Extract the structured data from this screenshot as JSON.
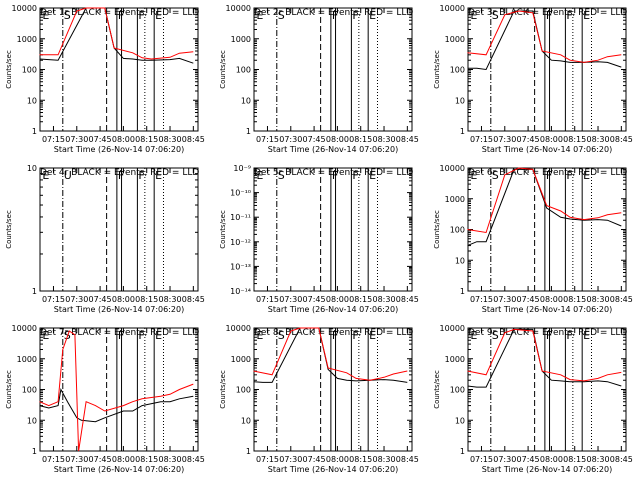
{
  "figure": {
    "time_ticks": [
      "07:15",
      "07:30",
      "07:45",
      "08:00",
      "08:15",
      "08:30",
      "08:45"
    ],
    "colors": {
      "events": "#000000",
      "lld": "#ff0000",
      "axes": "#000000"
    }
  },
  "chart_data": [
    {
      "type": "line",
      "title": "Det 1r BLACK = Events, RED = LLD",
      "xlabel": "Start Time (26-Nov-14 07:06:20)",
      "ylabel": "Counts/sec",
      "yscale": "log",
      "ylim": [
        1,
        10000
      ],
      "yticks": [
        "1",
        "10",
        "100",
        "1000",
        "10000"
      ],
      "markers": [
        "E",
        "S",
        "F",
        "F",
        "E"
      ],
      "series": [
        {
          "color": "#000000",
          "x": [
            7.1,
            7.2,
            7.3,
            7.6,
            7.8,
            7.9,
            8.0,
            8.1,
            8.2,
            8.3,
            8.5,
            8.6,
            8.75
          ],
          "y": [
            220,
            210,
            200,
            10000,
            10000,
            500,
            230,
            220,
            200,
            200,
            210,
            230,
            160
          ]
        },
        {
          "color": "#ff0000",
          "x": [
            7.1,
            7.3,
            7.5,
            7.6,
            7.8,
            7.9,
            8.1,
            8.2,
            8.3,
            8.5,
            8.6,
            8.75
          ],
          "y": [
            300,
            300,
            8000,
            10000,
            10000,
            500,
            350,
            240,
            220,
            250,
            340,
            380
          ]
        }
      ]
    },
    {
      "type": "line",
      "title": "Det 2r BLACK = Events, RED = LLD",
      "xlabel": "Start Time (26-Nov-14 07:06:20)",
      "ylabel": "Counts/sec",
      "yscale": "log",
      "ylim": [
        1,
        10000
      ],
      "yticks": [
        "1",
        "10",
        "100",
        "1000",
        "10000"
      ],
      "markers": [
        "E",
        "S",
        "F",
        "F",
        "E"
      ],
      "series": []
    },
    {
      "type": "line",
      "title": "Det 3r BLACK = Events, RED = LLD",
      "xlabel": "Start Time (26-Nov-14 07:06:20)",
      "ylabel": "Counts/sec",
      "yscale": "log",
      "ylim": [
        1,
        10000
      ],
      "yticks": [
        "1",
        "10",
        "100",
        "1000",
        "10000"
      ],
      "markers": [
        "E",
        "S",
        "F",
        "F",
        "E"
      ],
      "series": [
        {
          "color": "#000000",
          "x": [
            7.1,
            7.2,
            7.3,
            7.6,
            7.8,
            7.9,
            8.0,
            8.1,
            8.2,
            8.35,
            8.5,
            8.6,
            8.75
          ],
          "y": [
            110,
            110,
            100,
            8000,
            8000,
            400,
            200,
            190,
            170,
            170,
            180,
            170,
            120
          ]
        },
        {
          "color": "#ff0000",
          "x": [
            7.1,
            7.3,
            7.5,
            7.65,
            7.8,
            7.9,
            8.1,
            8.2,
            8.35,
            8.5,
            8.6,
            8.75
          ],
          "y": [
            350,
            300,
            6000,
            8000,
            7000,
            400,
            300,
            200,
            170,
            200,
            260,
            300
          ]
        }
      ]
    },
    {
      "type": "line",
      "title": "Det 4r BLACK = Events, RED = LLD",
      "xlabel": "Start Time (26-Nov-14 07:06:20)",
      "ylabel": "Counts/sec",
      "yscale": "log",
      "ylim": [
        1,
        10
      ],
      "yticks": [
        "1",
        "10"
      ],
      "markers": [
        "E",
        "U",
        "F",
        "F",
        "E"
      ],
      "series": []
    },
    {
      "type": "line",
      "title": "Det 5r BLACK = Events, RED = LLD",
      "xlabel": "Start Time (26-Nov-14 07:06:20)",
      "ylabel": "Counts/sec",
      "yscale": "log",
      "ylim": [
        1e-14,
        1e-09
      ],
      "yticks": [
        "10⁻¹⁴",
        "10⁻¹³",
        "10⁻¹²",
        "10⁻¹¹",
        "10⁻¹⁰",
        "10⁻⁹"
      ],
      "markers": [
        "E",
        "S",
        "F",
        "F",
        "E"
      ],
      "series": []
    },
    {
      "type": "line",
      "title": "Det 6r BLACK = Events, RED = LLD",
      "xlabel": "Start Time (26-Nov-14 07:06:20)",
      "ylabel": "Counts/sec",
      "yscale": "log",
      "ylim": [
        1,
        10000
      ],
      "yticks": [
        "1",
        "10",
        "100",
        "1000",
        "10000"
      ],
      "markers": [
        "E",
        "S",
        "F",
        "F",
        "E"
      ],
      "series": [
        {
          "color": "#000000",
          "x": [
            7.1,
            7.2,
            7.3,
            7.6,
            7.8,
            7.95,
            8.1,
            8.2,
            8.35,
            8.5,
            8.6,
            8.75
          ],
          "y": [
            30,
            40,
            40,
            9000,
            9000,
            500,
            250,
            220,
            200,
            210,
            200,
            130
          ]
        },
        {
          "color": "#ff0000",
          "x": [
            7.1,
            7.3,
            7.5,
            7.65,
            7.8,
            7.95,
            8.1,
            8.2,
            8.35,
            8.5,
            8.6,
            8.75
          ],
          "y": [
            100,
            80,
            6000,
            10000,
            9000,
            600,
            400,
            250,
            210,
            240,
            300,
            350
          ]
        }
      ]
    },
    {
      "type": "line",
      "title": "Det 7r BLACK = Events, RED = LLD",
      "xlabel": "Start Time (26-Nov-14 07:06:20)",
      "ylabel": "Counts/sec",
      "yscale": "log",
      "ylim": [
        1,
        10000
      ],
      "yticks": [
        "1",
        "10",
        "100",
        "1000",
        "10000"
      ],
      "markers": [
        "E",
        "S",
        "F",
        "F",
        "E"
      ],
      "series": [
        {
          "color": "#000000",
          "x": [
            7.1,
            7.2,
            7.3,
            7.33,
            7.4,
            7.5,
            7.55,
            7.7,
            7.8,
            8.0,
            8.1,
            8.2,
            8.4,
            8.5,
            8.6,
            8.75
          ],
          "y": [
            30,
            25,
            30,
            100,
            40,
            12,
            10,
            9,
            12,
            20,
            20,
            30,
            40,
            40,
            50,
            60
          ]
        },
        {
          "color": "#ff0000",
          "x": [
            7.1,
            7.2,
            7.3,
            7.35,
            7.42,
            7.48,
            7.52,
            7.6,
            7.7,
            7.8,
            8.0,
            8.1,
            8.2,
            8.4,
            8.5,
            8.6,
            8.75
          ],
          "y": [
            40,
            30,
            40,
            2000,
            8000,
            6000,
            1,
            40,
            30,
            20,
            30,
            40,
            50,
            60,
            70,
            100,
            150
          ]
        }
      ]
    },
    {
      "type": "line",
      "title": "Det 8r BLACK = Events, RED = LLD",
      "xlabel": "Start Time (26-Nov-14 07:06:20)",
      "ylabel": "Counts/sec",
      "yscale": "log",
      "ylim": [
        1,
        10000
      ],
      "yticks": [
        "1",
        "10",
        "100",
        "1000",
        "10000"
      ],
      "markers": [
        "E",
        "S",
        "F",
        "F",
        "E"
      ],
      "series": [
        {
          "color": "#000000",
          "x": [
            7.1,
            7.2,
            7.3,
            7.6,
            7.8,
            7.9,
            8.0,
            8.1,
            8.2,
            8.35,
            8.5,
            8.6,
            8.75
          ],
          "y": [
            180,
            170,
            170,
            10000,
            10000,
            450,
            230,
            200,
            190,
            200,
            210,
            200,
            170
          ]
        },
        {
          "color": "#ff0000",
          "x": [
            7.1,
            7.3,
            7.5,
            7.6,
            7.8,
            7.9,
            8.1,
            8.2,
            8.35,
            8.5,
            8.6,
            8.75
          ],
          "y": [
            400,
            300,
            8000,
            10000,
            10000,
            500,
            350,
            230,
            200,
            250,
            320,
            400
          ]
        }
      ]
    },
    {
      "type": "line",
      "title": "Det 9r BLACK = Events, RED = LLD",
      "xlabel": "Start Time (26-Nov-14 07:06:20)",
      "ylabel": "Counts/sec",
      "yscale": "log",
      "ylim": [
        1,
        10000
      ],
      "yticks": [
        "1",
        "10",
        "100",
        "1000",
        "10000"
      ],
      "markers": [
        "E",
        "S",
        "F",
        "F",
        "E"
      ],
      "series": [
        {
          "color": "#000000",
          "x": [
            7.1,
            7.2,
            7.3,
            7.6,
            7.8,
            7.9,
            8.0,
            8.1,
            8.2,
            8.35,
            8.5,
            8.6,
            8.75
          ],
          "y": [
            130,
            120,
            120,
            9000,
            9000,
            400,
            200,
            190,
            180,
            180,
            190,
            180,
            130
          ]
        },
        {
          "color": "#ff0000",
          "x": [
            7.1,
            7.3,
            7.5,
            7.6,
            7.8,
            7.9,
            8.1,
            8.2,
            8.35,
            8.5,
            8.6,
            8.75
          ],
          "y": [
            400,
            300,
            7000,
            9000,
            8000,
            400,
            300,
            210,
            190,
            230,
            300,
            360
          ]
        }
      ]
    }
  ]
}
